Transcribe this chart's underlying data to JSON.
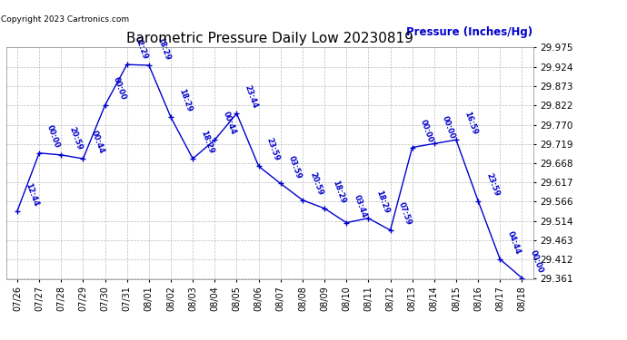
{
  "title": "Barometric Pressure Daily Low 20230819",
  "ylabel": "Pressure (Inches/Hg)",
  "copyright": "Copyright 2023 Cartronics.com",
  "plot_bg_color": "#ffffff",
  "line_color": "#0000cc",
  "label_color": "#0000cc",
  "grid_color": "#bbbbbb",
  "ylim": [
    29.361,
    29.975
  ],
  "yticks": [
    29.361,
    29.412,
    29.463,
    29.514,
    29.566,
    29.617,
    29.668,
    29.719,
    29.77,
    29.822,
    29.873,
    29.924,
    29.975
  ],
  "dates": [
    "07/26",
    "07/27",
    "07/28",
    "07/29",
    "07/30",
    "07/31",
    "08/01",
    "08/02",
    "08/03",
    "08/04",
    "08/05",
    "08/06",
    "08/07",
    "08/08",
    "08/09",
    "08/10",
    "08/11",
    "08/12",
    "08/13",
    "08/14",
    "08/15",
    "08/16",
    "08/17",
    "08/18"
  ],
  "values": [
    29.541,
    29.695,
    29.69,
    29.68,
    29.822,
    29.93,
    29.928,
    29.79,
    29.68,
    29.73,
    29.8,
    29.66,
    29.614,
    29.57,
    29.548,
    29.51,
    29.522,
    29.49,
    29.71,
    29.72,
    29.73,
    29.568,
    29.413,
    29.363
  ],
  "time_labels": [
    "12:44",
    "00:00",
    "20:59",
    "00:44",
    "00:00",
    "02:29",
    "18:29",
    "18:29",
    "18:29",
    "00:44",
    "23:44",
    "23:59",
    "03:59",
    "20:59",
    "18:29",
    "03:44",
    "18:29",
    "07:59",
    "00:00",
    "00:00",
    "16:59",
    "23:59",
    "04:44",
    "00:00"
  ],
  "figsize": [
    6.9,
    3.75
  ],
  "dpi": 100
}
